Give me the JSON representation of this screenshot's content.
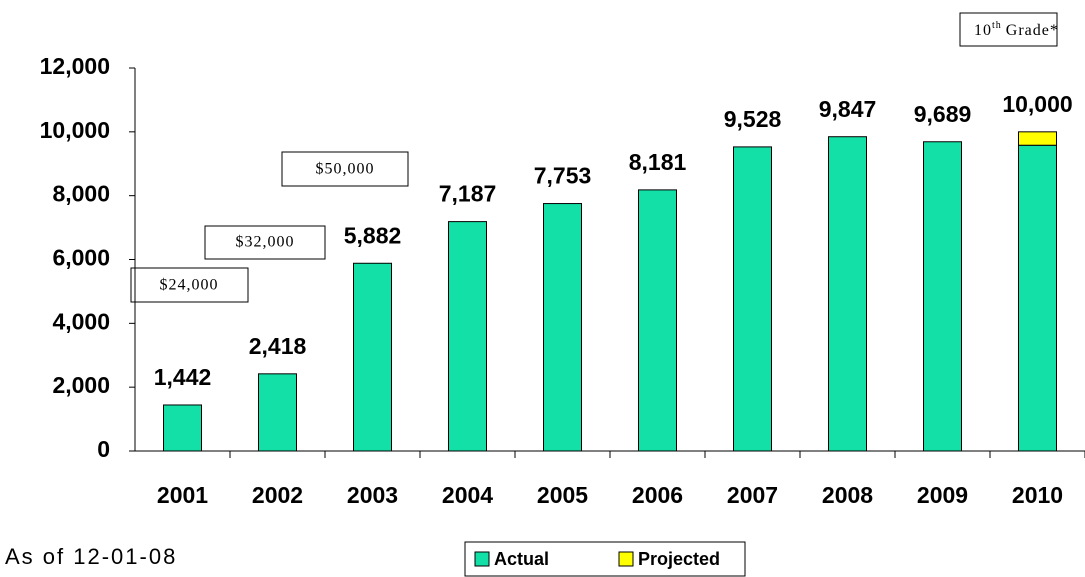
{
  "chart_data": {
    "type": "stacked_bar",
    "categories": [
      "2001",
      "2002",
      "2003",
      "2004",
      "2005",
      "2006",
      "2007",
      "2008",
      "2009",
      "2010"
    ],
    "series": [
      {
        "name": "Actual",
        "color": "#12e0a6",
        "values": [
          1442,
          2418,
          5882,
          7187,
          7753,
          8181,
          9528,
          9847,
          9689,
          9580
        ]
      },
      {
        "name": "Projected",
        "color": "#ffff00",
        "values": [
          null,
          null,
          null,
          null,
          null,
          null,
          null,
          null,
          null,
          420
        ]
      }
    ],
    "totals": [
      1442,
      2418,
      5882,
      7187,
      7753,
      8181,
      9528,
      9847,
      9689,
      10000
    ],
    "total_labels": [
      "1,442",
      "2,418",
      "5,882",
      "7,187",
      "7,753",
      "8,181",
      "9,528",
      "9,847",
      "9,689",
      "10,000"
    ],
    "ylim": [
      0,
      12000
    ],
    "yticks": [
      0,
      {
        "value": 2000,
        "label": "2,000"
      },
      {
        "value": 4000,
        "label": "4,000"
      },
      {
        "value": 6000,
        "label": "6,000"
      },
      {
        "value": 8000,
        "label": "8,000"
      },
      {
        "value": 10000,
        "label": "10,000"
      },
      {
        "value": 12000,
        "label": "12,000"
      }
    ],
    "grid": false,
    "annotations": [
      "$24,000",
      "$32,000",
      "$50,000"
    ],
    "grade_label": {
      "number": "10",
      "sup": "th",
      "text": "Grade*"
    },
    "footnote": "As of 12-01-08",
    "legend": "bottom"
  }
}
